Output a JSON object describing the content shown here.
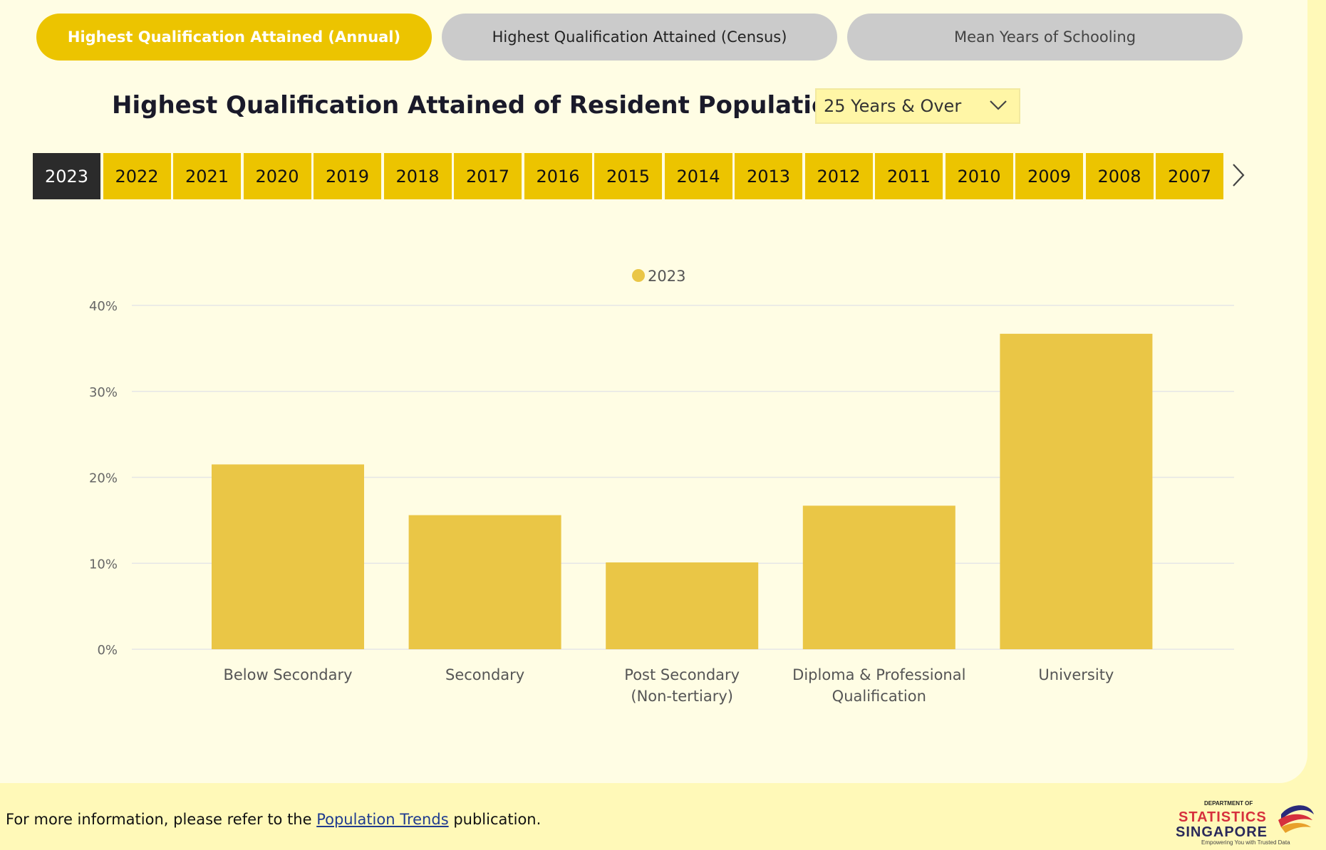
{
  "tabs": [
    {
      "label": "Highest Qualification Attained (Annual)",
      "active": true
    },
    {
      "label": "Highest Qualification Attained (Census)",
      "active": false
    },
    {
      "label": "Mean Years of Schooling",
      "active": false
    }
  ],
  "title": "Highest Qualification Attained of Resident Population Aged",
  "age_dropdown": {
    "selected": "25 Years & Over",
    "icon": "chevron-down-icon"
  },
  "years": [
    "2023",
    "2022",
    "2021",
    "2020",
    "2019",
    "2018",
    "2017",
    "2016",
    "2015",
    "2014",
    "2013",
    "2012",
    "2011",
    "2010",
    "2009",
    "2008",
    "2007"
  ],
  "selected_year": "2023",
  "next_icon": "chevron-right-icon",
  "colors": {
    "accent": "#ecc400",
    "bar": "#eac646",
    "selected": "#2b2b2b",
    "grid": "#e6e6e6"
  },
  "chart_data": {
    "type": "bar",
    "legend": [
      "2023"
    ],
    "legend_position": "top-center",
    "categories": [
      [
        "Below Secondary"
      ],
      [
        "Secondary"
      ],
      [
        "Post Secondary",
        "(Non-tertiary)"
      ],
      [
        "Diploma & Professional",
        "Qualification"
      ],
      [
        "University"
      ]
    ],
    "series": [
      {
        "name": "2023",
        "values": [
          21.5,
          15.6,
          10.1,
          16.7,
          36.7
        ]
      }
    ],
    "y_ticks": [
      "0%",
      "10%",
      "20%",
      "30%",
      "40%"
    ],
    "ylim": [
      0,
      40
    ],
    "grid": true
  },
  "footer": {
    "prefix": "For more information, please refer to the ",
    "link": "Population Trends",
    "suffix": " publication."
  },
  "logo": {
    "line1": "DEPARTMENT OF",
    "line2": "STATISTICS",
    "line3": "SINGAPORE",
    "tagline": "Empowering You with Trusted Data"
  }
}
